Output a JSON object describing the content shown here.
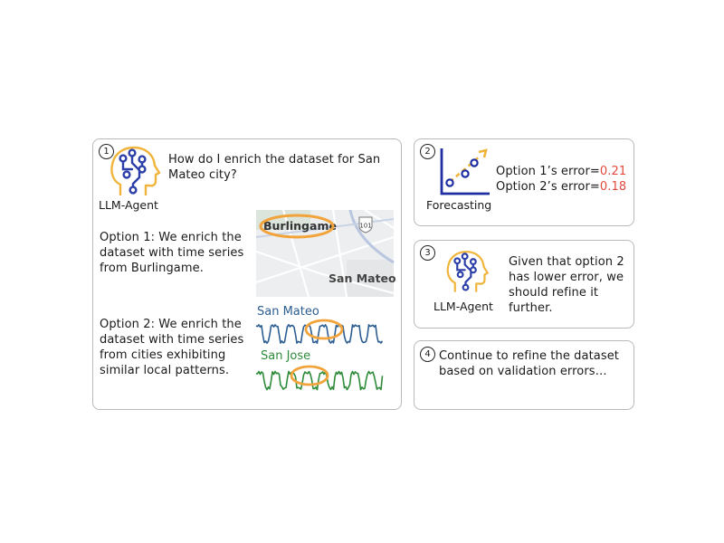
{
  "panel1": {
    "number": "1",
    "agent_label": "LLM-Agent",
    "question": "How do I enrich the dataset for San Mateo city?",
    "option1": "Option 1: We enrich the dataset with time series from Burlingame.",
    "option2": "Option 2: We enrich the dataset with time series from cities exhibiting similar local patterns.",
    "map": {
      "city_a": "Burlingame",
      "city_b": "San Mateo",
      "highway": "101"
    },
    "series": [
      {
        "name": "San Mateo",
        "color": "#2c5d91"
      },
      {
        "name": "San Jose",
        "color": "#2e8b3a"
      }
    ],
    "highlight_color": "#f2a33a"
  },
  "panel2": {
    "number": "2",
    "icon_label": "Forecasting",
    "option1_prefix": "Option 1’s error=",
    "option1_value": "0.21",
    "option2_prefix": "Option 2’s error=",
    "option2_value": "0.18",
    "value_color": "#e04a3c"
  },
  "panel3": {
    "number": "3",
    "agent_label": "LLM-Agent",
    "text": "Given that option 2 has lower error, we should refine it further."
  },
  "panel4": {
    "number": "4",
    "text": "Continue to refine the dataset based on validation errors…"
  },
  "colors": {
    "brain_outline": "#f0b43a",
    "brain_circuit": "#2c3fa8",
    "axis": "#1f2fa3"
  }
}
